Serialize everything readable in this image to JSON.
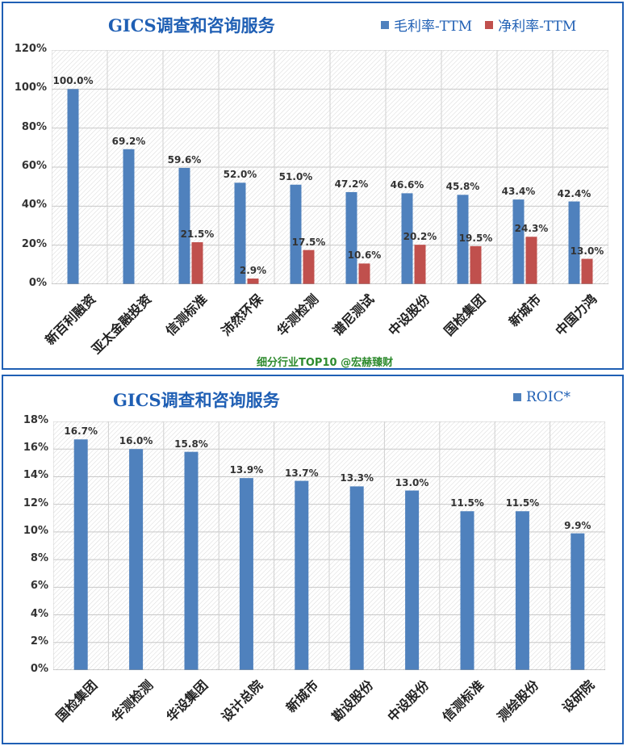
{
  "colors": {
    "blue": "#4f81bd",
    "red": "#c0504d",
    "title": "#1f5fb4",
    "footer": "#2e8b2e"
  },
  "chart_data": [
    {
      "type": "bar",
      "title": "GICS调查和咨询服务",
      "categories": [
        "新百利融资",
        "亚太金融投资",
        "信测标准",
        "沛然环保",
        "华测检测",
        "谱尼测试",
        "中设股份",
        "国检集团",
        "新城市",
        "中国力鸿"
      ],
      "series": [
        {
          "name": "毛利率-TTM",
          "color": "#4f81bd",
          "values": [
            100.0,
            69.2,
            59.6,
            52.0,
            51.0,
            47.2,
            46.6,
            45.8,
            43.4,
            42.4
          ],
          "labels": [
            "100.0%",
            "69.2%",
            "59.6%",
            "52.0%",
            "51.0%",
            "47.2%",
            "46.6%",
            "45.8%",
            "43.4%",
            "42.4%"
          ]
        },
        {
          "name": "净利率-TTM",
          "color": "#c0504d",
          "values": [
            null,
            null,
            21.5,
            2.9,
            17.5,
            10.6,
            20.2,
            19.5,
            24.3,
            13.0
          ],
          "labels": [
            "",
            "",
            "21.5%",
            "2.9%",
            "17.5%",
            "10.6%",
            "20.2%",
            "19.5%",
            "24.3%",
            "13.0%"
          ]
        }
      ],
      "ylim": [
        0,
        120
      ],
      "yticks": [
        "0%",
        "20%",
        "40%",
        "60%",
        "80%",
        "100%",
        "120%"
      ],
      "grid": true,
      "legend": "top-right",
      "footer": "细分行业TOP10 @宏赫臻财"
    },
    {
      "type": "bar",
      "title": "GICS调查和咨询服务",
      "categories": [
        "国检集团",
        "华测检测",
        "华设集团",
        "设计总院",
        "新城市",
        "勘设股份",
        "中设股份",
        "信测标准",
        "测绘股份",
        "设研院"
      ],
      "series": [
        {
          "name": "ROIC*",
          "color": "#4f81bd",
          "values": [
            16.7,
            16.0,
            15.8,
            13.9,
            13.7,
            13.3,
            13.0,
            11.5,
            11.5,
            9.9
          ],
          "labels": [
            "16.7%",
            "16.0%",
            "15.8%",
            "13.9%",
            "13.7%",
            "13.3%",
            "13.0%",
            "11.5%",
            "11.5%",
            "9.9%"
          ]
        }
      ],
      "ylim": [
        0,
        18
      ],
      "yticks": [
        "0%",
        "2%",
        "4%",
        "6%",
        "8%",
        "10%",
        "12%",
        "14%",
        "16%",
        "18%"
      ],
      "grid": true,
      "legend": "top-right"
    }
  ]
}
